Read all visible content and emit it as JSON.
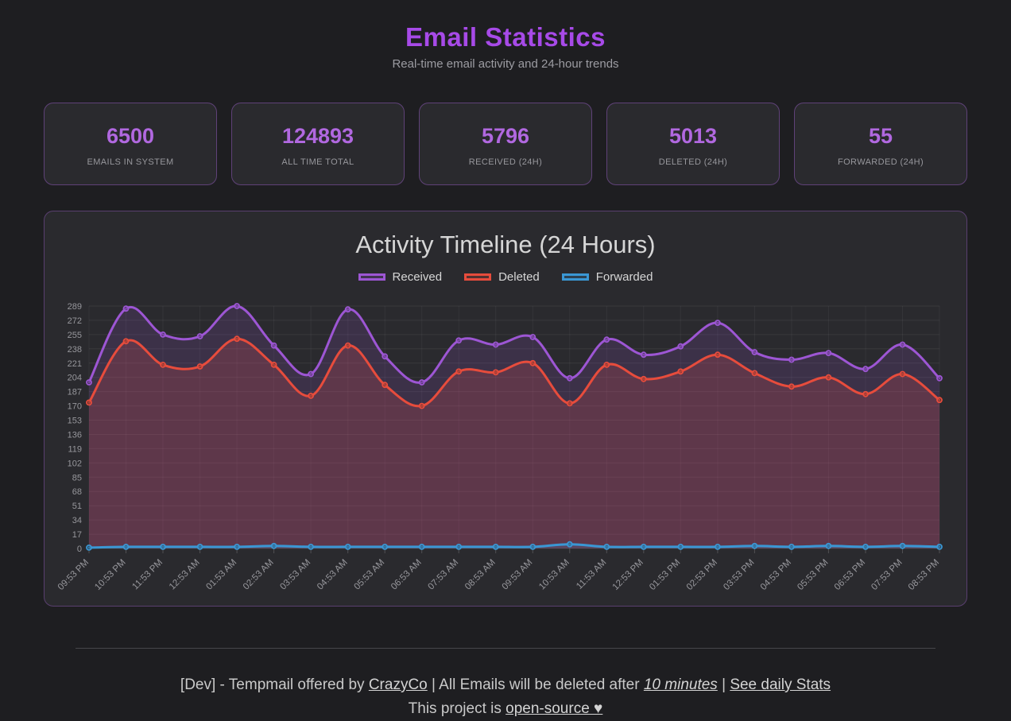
{
  "header": {
    "title": "Email Statistics",
    "subtitle": "Real-time email activity and 24-hour trends"
  },
  "stats": [
    {
      "value": "6500",
      "label": "EMAILS IN SYSTEM"
    },
    {
      "value": "124893",
      "label": "ALL TIME TOTAL"
    },
    {
      "value": "5796",
      "label": "RECEIVED (24H)"
    },
    {
      "value": "5013",
      "label": "DELETED (24H)"
    },
    {
      "value": "55",
      "label": "FORWARDED (24H)"
    }
  ],
  "chart_data": {
    "type": "line",
    "title": "Activity Timeline (24 Hours)",
    "x": [
      "09:53 PM",
      "10:53 PM",
      "11:53 PM",
      "12:53 AM",
      "01:53 AM",
      "02:53 AM",
      "03:53 AM",
      "04:53 AM",
      "05:53 AM",
      "06:53 AM",
      "07:53 AM",
      "08:53 AM",
      "09:53 AM",
      "10:53 AM",
      "11:53 AM",
      "12:53 PM",
      "01:53 PM",
      "02:53 PM",
      "03:53 PM",
      "04:53 PM",
      "05:53 PM",
      "06:53 PM",
      "07:53 PM",
      "08:53 PM"
    ],
    "series": [
      {
        "name": "Received",
        "color": "#9d56d4",
        "values": [
          198,
          286,
          255,
          253,
          289,
          242,
          208,
          285,
          229,
          198,
          248,
          243,
          252,
          203,
          249,
          231,
          241,
          269,
          234,
          225,
          233,
          214,
          243,
          203
        ]
      },
      {
        "name": "Deleted",
        "color": "#e74c3c",
        "values": [
          174,
          247,
          219,
          217,
          250,
          219,
          182,
          242,
          195,
          170,
          211,
          210,
          221,
          173,
          219,
          202,
          211,
          231,
          209,
          193,
          204,
          184,
          208,
          177
        ]
      },
      {
        "name": "Forwarded",
        "color": "#3a97d4",
        "values": [
          1,
          2,
          2,
          2,
          2,
          3,
          2,
          2,
          2,
          2,
          2,
          2,
          2,
          5,
          2,
          2,
          2,
          2,
          3,
          2,
          3,
          2,
          3,
          2
        ]
      }
    ],
    "ylim": [
      0,
      289
    ],
    "ytick_step": 17,
    "grid": true,
    "legend_position": "top"
  },
  "colors": {
    "accent": "#a74ae8",
    "stat_value": "#b168e0",
    "card_border": "#a05fd2",
    "background": "#1e1e21",
    "tick_label": "#97979c"
  },
  "footer": {
    "prefix": "[Dev] - Tempmail offered by ",
    "crazyco_link": "CrazyCo",
    "mid1": " | All Emails will be deleted after ",
    "minutes_link": "10 minutes",
    "mid2": " | ",
    "stats_link": "See daily Stats",
    "line2_prefix": "This project is ",
    "opensource_link": "open-source ♥"
  }
}
